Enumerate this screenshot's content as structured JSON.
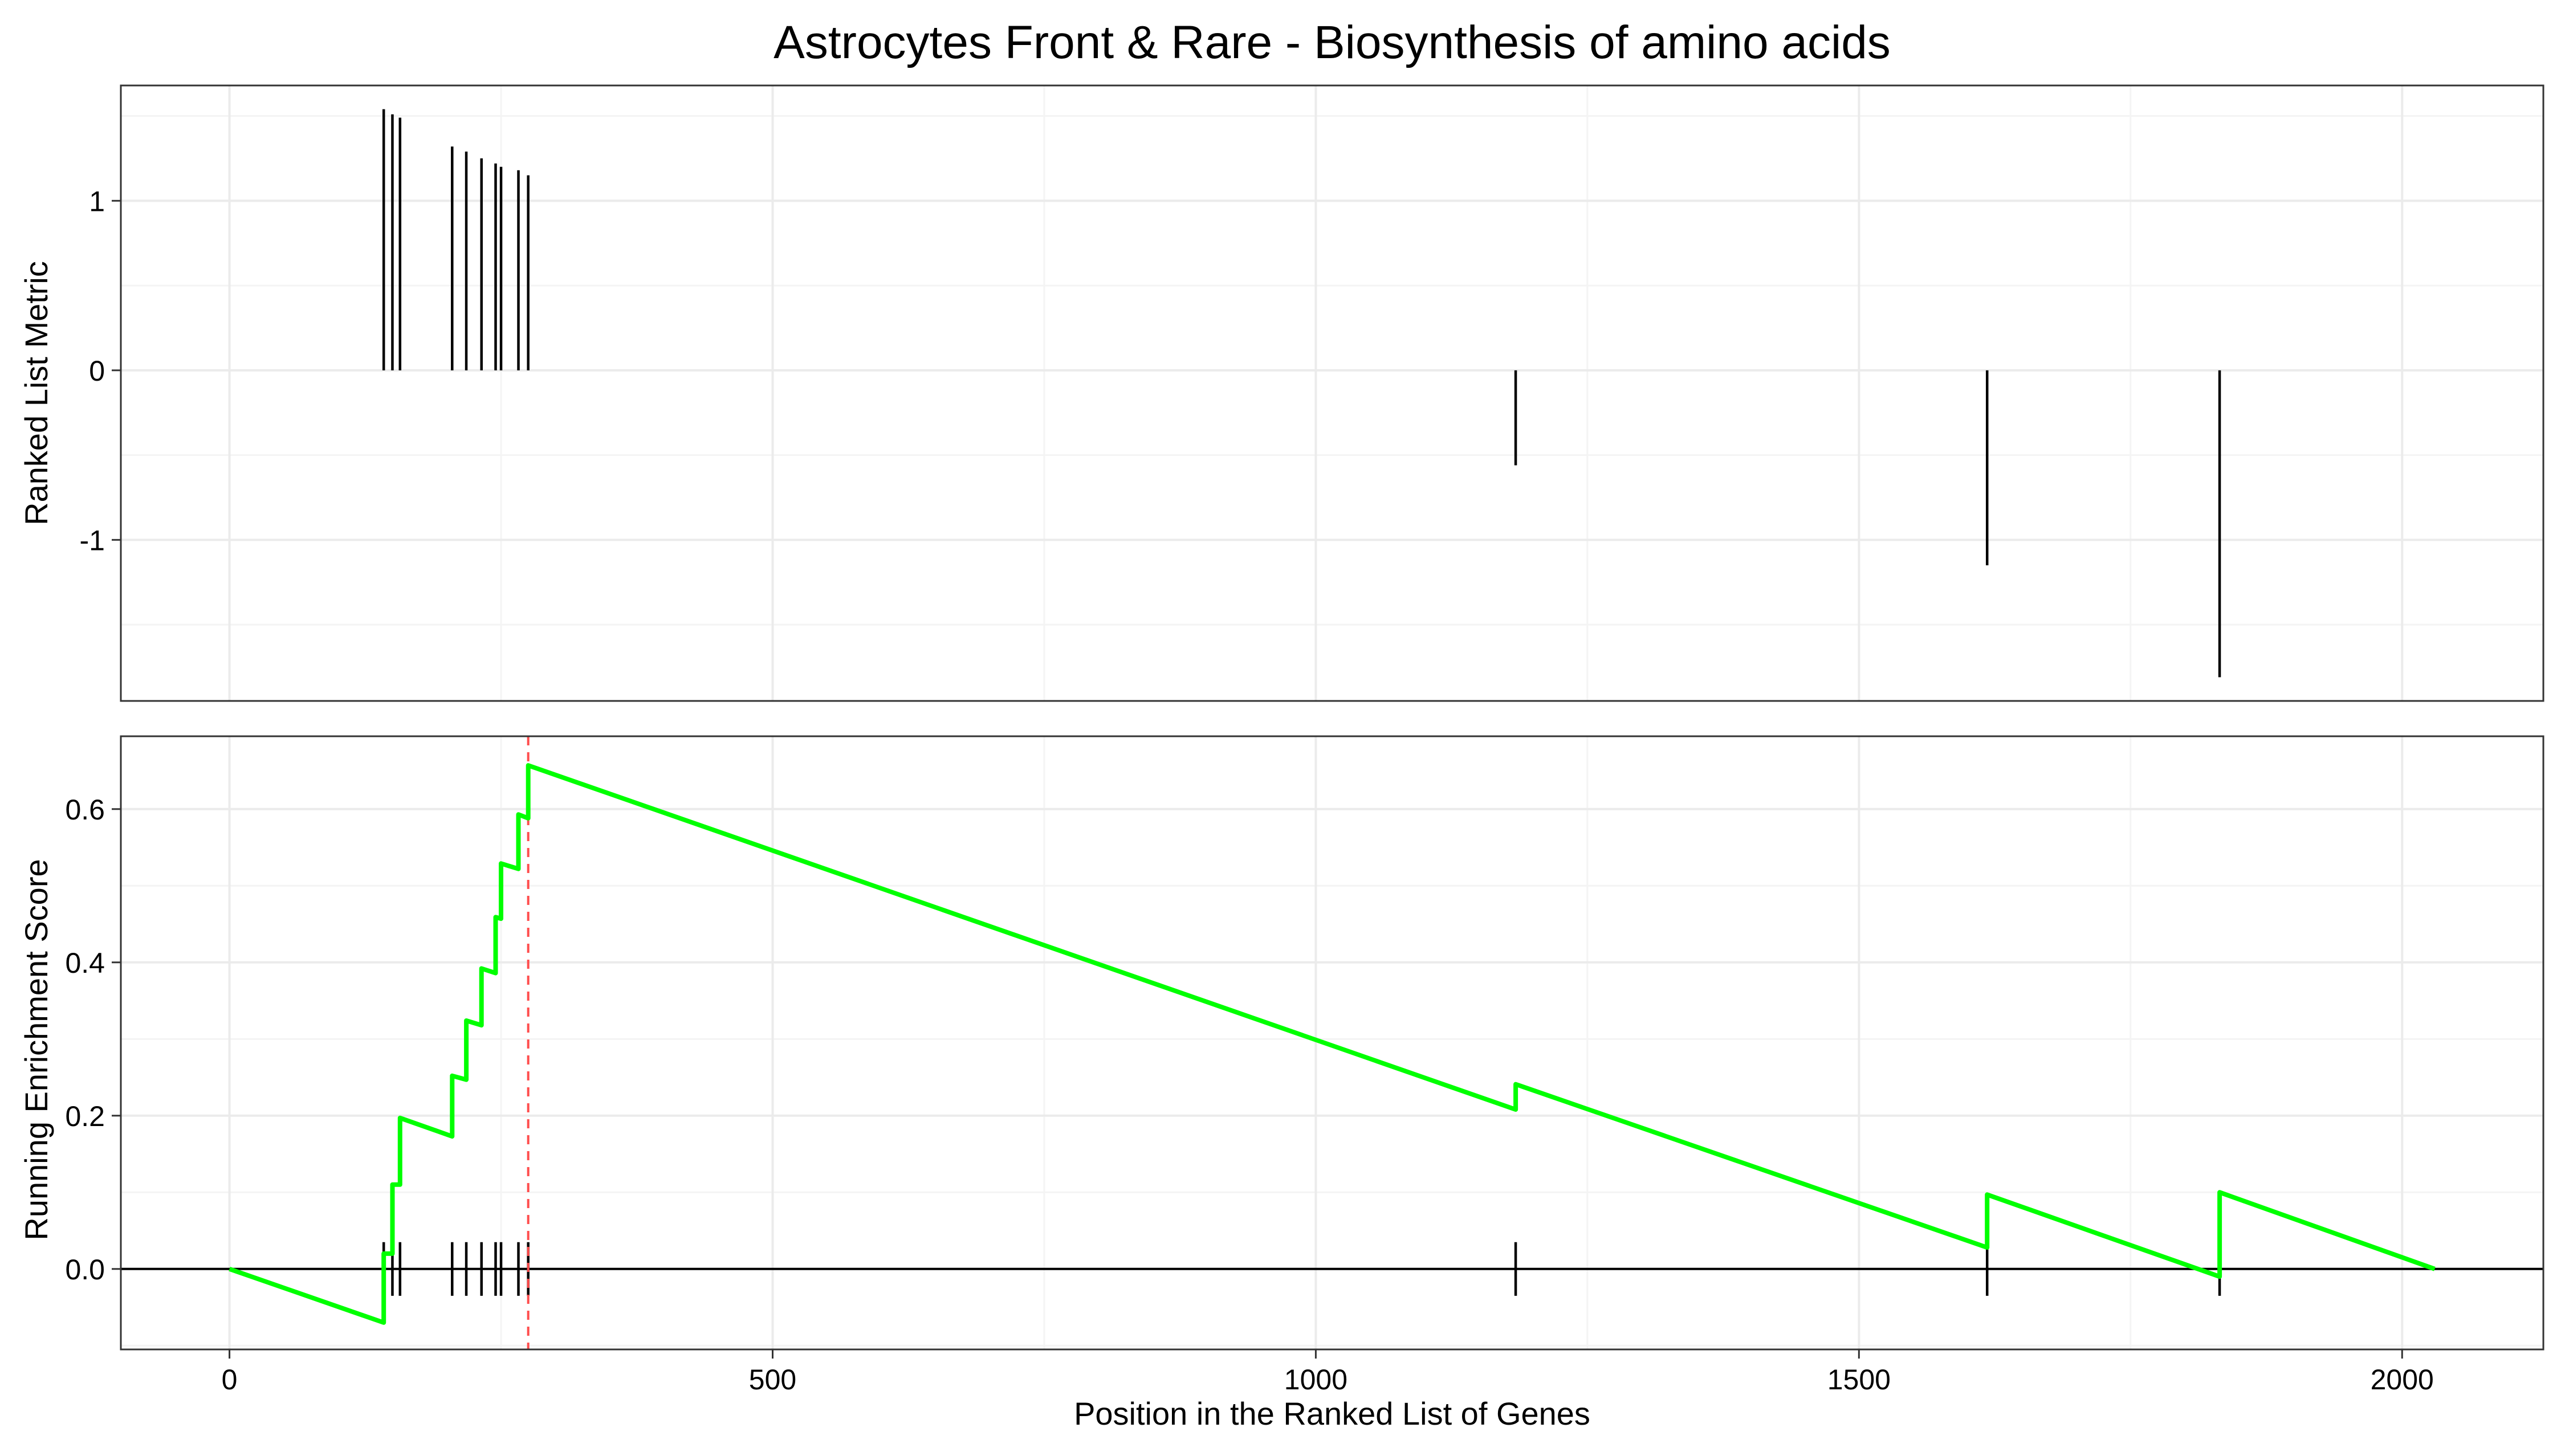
{
  "chart_data": {
    "title": "Astrocytes Front & Rare - Biosynthesis of amino acids",
    "xlabel": "Position in the Ranked List of Genes",
    "xlim": [
      -100,
      2130
    ],
    "x_ticks": [
      0,
      500,
      1000,
      1500,
      2000
    ],
    "x_tick_labels": [
      "0",
      "500",
      "1000",
      "1500",
      "2000"
    ],
    "grid": true,
    "peak_position": 275,
    "panels": [
      {
        "type": "bar",
        "ylabel": "Ranked List Metric",
        "ylim": [
          -1.95,
          1.68
        ],
        "y_ticks": [
          -1,
          0,
          1
        ],
        "y_tick_labels": [
          "-1",
          "0",
          "1"
        ],
        "minor_y_ticks": [
          -1.5,
          -0.5,
          0.5,
          1.5
        ],
        "points": [
          {
            "x": 142,
            "y": 1.54
          },
          {
            "x": 150,
            "y": 1.51
          },
          {
            "x": 157,
            "y": 1.49
          },
          {
            "x": 205,
            "y": 1.32
          },
          {
            "x": 218,
            "y": 1.29
          },
          {
            "x": 232,
            "y": 1.25
          },
          {
            "x": 245,
            "y": 1.22
          },
          {
            "x": 250,
            "y": 1.2
          },
          {
            "x": 266,
            "y": 1.18
          },
          {
            "x": 275,
            "y": 1.15
          },
          {
            "x": 1184,
            "y": -0.56
          },
          {
            "x": 1618,
            "y": -1.15
          },
          {
            "x": 1832,
            "y": -1.81
          }
        ]
      },
      {
        "type": "line",
        "ylabel": "Running Enrichment Score",
        "ylim": [
          -0.105,
          0.695
        ],
        "y_ticks": [
          0.0,
          0.2,
          0.4,
          0.6
        ],
        "y_tick_labels": [
          "0.0",
          "0.2",
          "0.4",
          "0.6"
        ],
        "minor_y_ticks": [
          -0.1,
          0.1,
          0.3,
          0.5
        ],
        "line_color": "#00ff00",
        "peak_line_color": "#ff4d4d",
        "hit_positions": [
          142,
          150,
          157,
          205,
          218,
          232,
          245,
          250,
          266,
          275,
          1184,
          1618,
          1832
        ],
        "running_es": [
          {
            "x": 0,
            "y": 0.0
          },
          {
            "x": 142,
            "y": -0.07
          },
          {
            "x": 142,
            "y": 0.02
          },
          {
            "x": 150,
            "y": 0.02
          },
          {
            "x": 150,
            "y": 0.11
          },
          {
            "x": 157,
            "y": 0.11
          },
          {
            "x": 157,
            "y": 0.197
          },
          {
            "x": 205,
            "y": 0.173
          },
          {
            "x": 205,
            "y": 0.252
          },
          {
            "x": 218,
            "y": 0.247
          },
          {
            "x": 218,
            "y": 0.324
          },
          {
            "x": 232,
            "y": 0.318
          },
          {
            "x": 232,
            "y": 0.392
          },
          {
            "x": 245,
            "y": 0.386
          },
          {
            "x": 245,
            "y": 0.459
          },
          {
            "x": 250,
            "y": 0.457
          },
          {
            "x": 250,
            "y": 0.529
          },
          {
            "x": 266,
            "y": 0.522
          },
          {
            "x": 266,
            "y": 0.593
          },
          {
            "x": 275,
            "y": 0.588
          },
          {
            "x": 275,
            "y": 0.657
          },
          {
            "x": 1184,
            "y": 0.208
          },
          {
            "x": 1184,
            "y": 0.241
          },
          {
            "x": 1618,
            "y": 0.028
          },
          {
            "x": 1618,
            "y": 0.097
          },
          {
            "x": 1832,
            "y": -0.01
          },
          {
            "x": 1832,
            "y": 0.1
          },
          {
            "x": 2030,
            "y": 0.0
          }
        ]
      }
    ]
  }
}
